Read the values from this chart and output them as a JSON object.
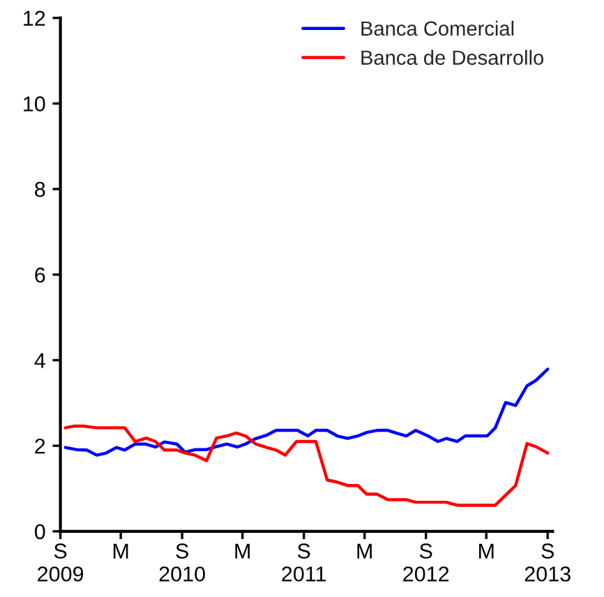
{
  "chart_data": {
    "type": "line",
    "xlim": [
      "2009-09-01",
      "2013-09-16"
    ],
    "xticks": [
      {
        "value": "2009-09-01",
        "label": "S\n2009"
      },
      {
        "value": "2010-03-01",
        "label": "M"
      },
      {
        "value": "2010-09-01",
        "label": "S\n2010"
      },
      {
        "value": "2011-03-01",
        "label": "M"
      },
      {
        "value": "2011-09-01",
        "label": "S\n2011"
      },
      {
        "value": "2012-03-01",
        "label": "M"
      },
      {
        "value": "2012-09-01",
        "label": "S\n2012"
      },
      {
        "value": "2013-03-01",
        "label": "M"
      },
      {
        "value": "2013-09-01",
        "label": "S\n2013"
      }
    ],
    "ylim": [
      0,
      12
    ],
    "yticks": [
      0,
      2,
      4,
      6,
      8,
      10,
      12
    ],
    "grid": false,
    "legend": "top right",
    "marker": "none",
    "line_style": "solid",
    "series": [
      {
        "name": "Banca Comercial",
        "color": "#0000ff",
        "x": [
          "2009-09-16",
          "2009-10-19",
          "2009-11-19",
          "2009-12-19",
          "2010-01-16",
          "2010-02-16",
          "2010-03-13",
          "2010-04-13",
          "2010-05-13",
          "2010-06-13",
          "2010-07-10",
          "2010-08-16",
          "2010-09-10",
          "2010-10-10",
          "2010-11-13",
          "2010-12-13",
          "2011-01-13",
          "2011-02-13",
          "2011-03-10",
          "2011-04-07",
          "2011-05-13",
          "2011-06-10",
          "2011-08-13",
          "2011-09-13",
          "2011-10-07",
          "2011-11-10",
          "2011-12-10",
          "2012-01-10",
          "2012-02-10",
          "2012-03-07",
          "2012-04-07",
          "2012-05-10",
          "2012-06-07",
          "2012-07-04",
          "2012-08-01",
          "2012-09-07",
          "2012-10-07",
          "2012-11-01",
          "2012-12-04",
          "2012-12-28",
          "2013-03-04",
          "2013-03-28",
          "2013-04-28",
          "2013-05-28",
          "2013-07-01",
          "2013-07-28",
          "2013-09-01"
        ],
        "values": [
          1.96,
          1.91,
          1.9,
          1.78,
          1.83,
          1.96,
          1.9,
          2.04,
          2.04,
          1.97,
          2.09,
          2.04,
          1.85,
          1.91,
          1.91,
          1.98,
          2.04,
          1.97,
          2.04,
          2.16,
          2.25,
          2.36,
          2.36,
          2.23,
          2.36,
          2.36,
          2.23,
          2.17,
          2.23,
          2.31,
          2.36,
          2.36,
          2.29,
          2.23,
          2.36,
          2.23,
          2.1,
          2.17,
          2.1,
          2.23,
          2.23,
          2.42,
          3.01,
          2.94,
          3.4,
          3.53,
          3.79
        ]
      },
      {
        "name": "Banca de Desarrollo",
        "color": "#ff0000",
        "x": [
          "2009-09-16",
          "2009-10-13",
          "2009-11-10",
          "2009-12-19",
          "2010-03-13",
          "2010-04-13",
          "2010-05-16",
          "2010-06-13",
          "2010-07-10",
          "2010-08-16",
          "2010-09-10",
          "2010-10-10",
          "2010-11-13",
          "2010-12-13",
          "2011-01-13",
          "2011-02-10",
          "2011-03-10",
          "2011-04-10",
          "2011-05-13",
          "2011-06-10",
          "2011-07-07",
          "2011-08-10",
          "2011-10-07",
          "2011-11-10",
          "2011-12-10",
          "2012-01-10",
          "2012-02-10",
          "2012-03-07",
          "2012-04-07",
          "2012-05-10",
          "2012-07-04",
          "2012-08-01",
          "2012-11-01",
          "2012-12-04",
          "2013-03-28",
          "2013-05-28",
          "2013-07-01",
          "2013-07-28",
          "2013-09-01"
        ],
        "values": [
          2.42,
          2.46,
          2.46,
          2.42,
          2.42,
          2.1,
          2.18,
          2.1,
          1.9,
          1.9,
          1.83,
          1.78,
          1.65,
          2.18,
          2.23,
          2.3,
          2.23,
          2.04,
          1.96,
          1.9,
          1.78,
          2.1,
          2.1,
          1.2,
          1.15,
          1.07,
          1.07,
          0.87,
          0.87,
          0.74,
          0.74,
          0.68,
          0.68,
          0.61,
          0.61,
          1.07,
          2.05,
          1.98,
          1.83
        ]
      }
    ]
  }
}
